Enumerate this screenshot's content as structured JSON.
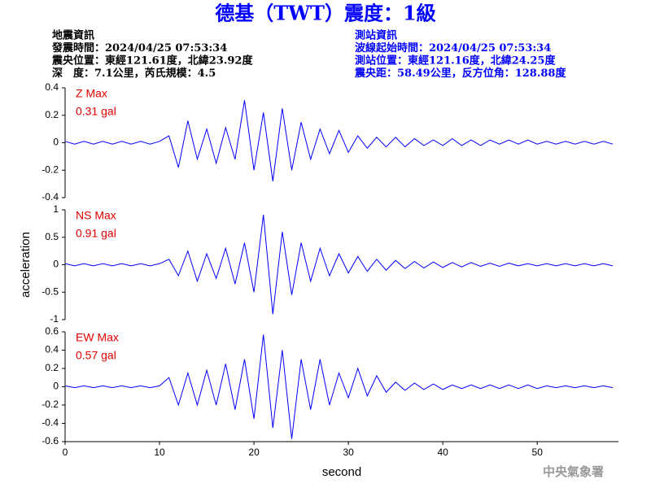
{
  "title": "德基（TWT）震度：1級",
  "info_left": [
    "地震資訊",
    "發震時間：2024/04/25 07:53:34",
    "震央位置：東經121.61度，北緯23.92度",
    "深　度：7.1公里，芮氏規模：4.5"
  ],
  "info_right": [
    "測站資訊",
    "波線起始時間：2024/04/25 07:53:34",
    "測站位置：東經121.16度，北緯24.25度",
    "震央距：58.49公里，反方位角：128.88度"
  ],
  "footer": "中央氣象署",
  "chart_data": [
    {
      "type": "line",
      "label": "Z Max",
      "max_label": "0.31 gal",
      "xlim": [
        0,
        58.6
      ],
      "ylim": [
        -0.4,
        0.4
      ],
      "yticks": [
        0.4,
        0.2,
        0,
        -0.2,
        -0.4
      ],
      "x": [
        0,
        1,
        2,
        3,
        4,
        5,
        6,
        7,
        8,
        9,
        10,
        11,
        12,
        13,
        14,
        15,
        16,
        17,
        18,
        19,
        20,
        21,
        22,
        23,
        24,
        25,
        26,
        27,
        28,
        29,
        30,
        31,
        32,
        33,
        34,
        35,
        36,
        37,
        38,
        39,
        40,
        41,
        42,
        43,
        44,
        45,
        46,
        47,
        48,
        49,
        50,
        51,
        52,
        53,
        54,
        55,
        56,
        57,
        58
      ],
      "series": [
        {
          "color": "#0000ff",
          "values": [
            0.01,
            -0.01,
            0.01,
            -0.01,
            0.01,
            -0.01,
            0.01,
            -0.01,
            0.01,
            -0.01,
            0.01,
            0.05,
            -0.18,
            0.16,
            -0.12,
            0.1,
            -0.15,
            0.11,
            -0.12,
            0.31,
            -0.2,
            0.22,
            -0.28,
            0.25,
            -0.2,
            0.15,
            -0.12,
            0.1,
            -0.08,
            0.09,
            -0.07,
            0.05,
            -0.04,
            0.04,
            -0.03,
            0.04,
            -0.03,
            0.03,
            -0.02,
            0.02,
            -0.02,
            0.03,
            -0.02,
            0.02,
            -0.02,
            0.02,
            -0.01,
            0.02,
            -0.01,
            0.02,
            -0.01,
            0.01,
            -0.01,
            0.01,
            -0.01,
            0.01,
            -0.01,
            0.01,
            -0.01
          ]
        }
      ]
    },
    {
      "type": "line",
      "label": "NS Max",
      "max_label": "0.91 gal",
      "ylabel": "acceleration",
      "xlim": [
        0,
        58.6
      ],
      "ylim": [
        -1,
        1
      ],
      "yticks": [
        1,
        0.5,
        0,
        -0.5,
        -1
      ],
      "x": [
        0,
        1,
        2,
        3,
        4,
        5,
        6,
        7,
        8,
        9,
        10,
        11,
        12,
        13,
        14,
        15,
        16,
        17,
        18,
        19,
        20,
        21,
        22,
        23,
        24,
        25,
        26,
        27,
        28,
        29,
        30,
        31,
        32,
        33,
        34,
        35,
        36,
        37,
        38,
        39,
        40,
        41,
        42,
        43,
        44,
        45,
        46,
        47,
        48,
        49,
        50,
        51,
        52,
        53,
        54,
        55,
        56,
        57,
        58
      ],
      "series": [
        {
          "color": "#0000ff",
          "values": [
            0.02,
            -0.02,
            0.02,
            -0.02,
            0.02,
            -0.02,
            0.02,
            -0.02,
            0.02,
            -0.02,
            0.02,
            0.1,
            -0.2,
            0.25,
            -0.3,
            0.2,
            -0.25,
            0.3,
            -0.35,
            0.4,
            -0.5,
            0.91,
            -0.9,
            0.6,
            -0.55,
            0.4,
            -0.3,
            0.3,
            -0.2,
            0.2,
            -0.15,
            0.15,
            -0.12,
            0.1,
            -0.1,
            0.08,
            -0.07,
            0.06,
            -0.06,
            0.05,
            -0.05,
            0.04,
            -0.04,
            0.04,
            -0.03,
            0.03,
            -0.03,
            0.03,
            -0.02,
            0.02,
            -0.02,
            0.02,
            -0.02,
            0.02,
            -0.02,
            0.02,
            -0.02,
            0.02,
            -0.02
          ]
        }
      ]
    },
    {
      "type": "line",
      "label": "EW Max",
      "max_label": "0.57 gal",
      "xlabel": "second",
      "xlim": [
        0,
        58.6
      ],
      "xticks": [
        0,
        10,
        20,
        30,
        40,
        50
      ],
      "ylim": [
        -0.6,
        0.6
      ],
      "yticks": [
        0.6,
        0.4,
        0.2,
        0,
        -0.2,
        -0.4,
        -0.6
      ],
      "x": [
        0,
        1,
        2,
        3,
        4,
        5,
        6,
        7,
        8,
        9,
        10,
        11,
        12,
        13,
        14,
        15,
        16,
        17,
        18,
        19,
        20,
        21,
        22,
        23,
        24,
        25,
        26,
        27,
        28,
        29,
        30,
        31,
        32,
        33,
        34,
        35,
        36,
        37,
        38,
        39,
        40,
        41,
        42,
        43,
        44,
        45,
        46,
        47,
        48,
        49,
        50,
        51,
        52,
        53,
        54,
        55,
        56,
        57,
        58
      ],
      "series": [
        {
          "color": "#0000ff",
          "values": [
            0.01,
            -0.01,
            0.01,
            -0.01,
            0.01,
            -0.01,
            0.01,
            -0.01,
            0.01,
            -0.01,
            0.01,
            0.1,
            -0.2,
            0.15,
            -0.2,
            0.18,
            -0.2,
            0.25,
            -0.25,
            0.3,
            -0.35,
            0.57,
            -0.45,
            0.4,
            -0.57,
            0.3,
            -0.25,
            0.3,
            -0.2,
            0.15,
            -0.12,
            0.2,
            -0.1,
            0.12,
            -0.06,
            0.05,
            -0.04,
            0.04,
            -0.03,
            0.03,
            -0.03,
            0.02,
            -0.02,
            0.02,
            -0.02,
            0.02,
            -0.02,
            0.02,
            -0.02,
            0.02,
            -0.02,
            0.01,
            -0.01,
            0.01,
            -0.01,
            0.01,
            -0.01,
            0.01,
            -0.01
          ]
        }
      ]
    }
  ]
}
